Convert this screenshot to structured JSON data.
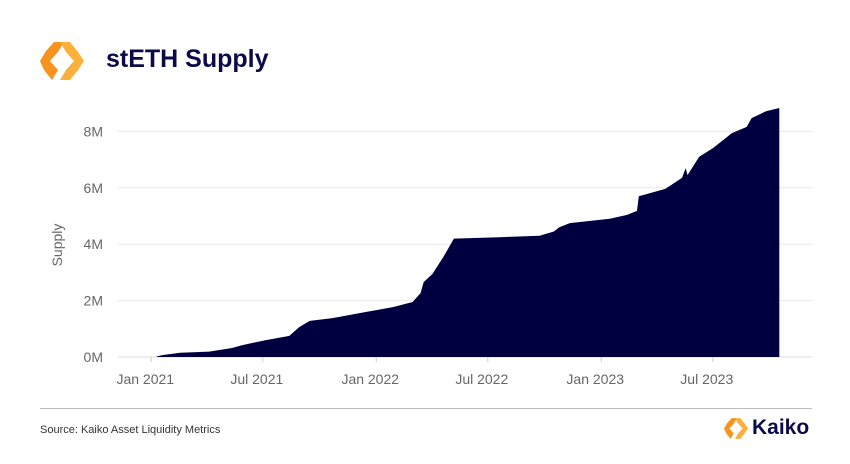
{
  "header": {
    "title": "stETH Supply",
    "logo_icon": "kaiko-hexagon-logo"
  },
  "footer": {
    "source": "Source: Kaiko Asset Liquidity Metrics",
    "brand": "Kaiko"
  },
  "colors": {
    "area": "#000040",
    "title": "#0b0b4a",
    "logo_orange": "#f7931e",
    "logo_yellow": "#fbb03b",
    "grid": "#e8e8e8"
  },
  "chart_data": {
    "type": "area",
    "title": "stETH Supply",
    "xlabel": "",
    "ylabel": "Supply",
    "ylim": [
      0,
      9000000
    ],
    "xlim": [
      "2020-11-08",
      "2023-12-09"
    ],
    "grid": true,
    "yticks": [
      {
        "value": 0,
        "label": "0M"
      },
      {
        "value": 2000000,
        "label": "2M"
      },
      {
        "value": 4000000,
        "label": "4M"
      },
      {
        "value": 6000000,
        "label": "6M"
      },
      {
        "value": 8000000,
        "label": "8M"
      }
    ],
    "xticks": [
      {
        "date": "2021-01-01",
        "label": "Jan 2021"
      },
      {
        "date": "2021-07-01",
        "label": "Jul 2021"
      },
      {
        "date": "2022-01-01",
        "label": "Jan 2022"
      },
      {
        "date": "2022-07-01",
        "label": "Jul 2022"
      },
      {
        "date": "2023-01-01",
        "label": "Jan 2023"
      },
      {
        "date": "2023-07-01",
        "label": "Jul 2023"
      }
    ],
    "series": [
      {
        "x": [
          "2021-01-10",
          "2021-01-20",
          "2021-02-17",
          "2021-04-05",
          "2021-05-12",
          "2021-05-28",
          "2021-07-06",
          "2021-08-13",
          "2021-08-29",
          "2021-09-15",
          "2021-10-22",
          "2021-12-16",
          "2022-01-28",
          "2022-03-01",
          "2022-03-14",
          "2022-03-19",
          "2022-04-02",
          "2022-04-20",
          "2022-05-07",
          "2022-07-19",
          "2022-09-23",
          "2022-10-16",
          "2022-10-25",
          "2022-11-11",
          "2023-01-15",
          "2023-02-12",
          "2023-02-28",
          "2023-03-03",
          "2023-04-15",
          "2023-05-12",
          "2023-05-18",
          "2023-05-21",
          "2023-06-09",
          "2023-07-01",
          "2023-08-01",
          "2023-08-25",
          "2023-09-02",
          "2023-09-26",
          "2023-10-17"
        ],
        "y": [
          20000,
          70000,
          150000,
          190000,
          320000,
          420000,
          600000,
          750000,
          1060000,
          1280000,
          1380000,
          1600000,
          1770000,
          1950000,
          2270000,
          2660000,
          2940000,
          3550000,
          4200000,
          4250000,
          4300000,
          4450000,
          4600000,
          4750000,
          4900000,
          5040000,
          5180000,
          5700000,
          5960000,
          6350000,
          6700000,
          6450000,
          7100000,
          7400000,
          7940000,
          8160000,
          8470000,
          8720000,
          8830000
        ]
      }
    ]
  }
}
